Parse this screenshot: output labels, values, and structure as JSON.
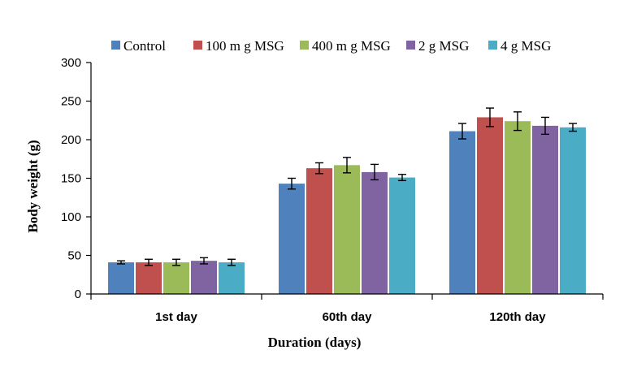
{
  "chart_data": {
    "type": "bar",
    "categories": [
      "1st day",
      "60th day",
      "120th day"
    ],
    "series": [
      {
        "name": "Control",
        "values": [
          41,
          143,
          211
        ],
        "errors": [
          2,
          7,
          10
        ],
        "color": "#4F81BD"
      },
      {
        "name": "100 m g MSG",
        "values": [
          41,
          163,
          229
        ],
        "errors": [
          4,
          7,
          12
        ],
        "color": "#C0504D"
      },
      {
        "name": "400 m g MSG",
        "values": [
          41,
          167,
          224
        ],
        "errors": [
          4,
          10,
          12
        ],
        "color": "#9BBB59"
      },
      {
        "name": "2 g MSG",
        "values": [
          43,
          158,
          218
        ],
        "errors": [
          4,
          10,
          11
        ],
        "color": "#8064A2"
      },
      {
        "name": "4 g MSG",
        "values": [
          41,
          151,
          216
        ],
        "errors": [
          4,
          4,
          5
        ],
        "color": "#4BACC6"
      }
    ],
    "xlabel": "Duration  (days)",
    "ylabel": "Body  weight  (g)",
    "ylim": [
      0,
      300
    ],
    "yticks": [
      "0",
      "50",
      "100",
      "150",
      "200",
      "250",
      "300"
    ],
    "grid": false,
    "legend": "top"
  }
}
